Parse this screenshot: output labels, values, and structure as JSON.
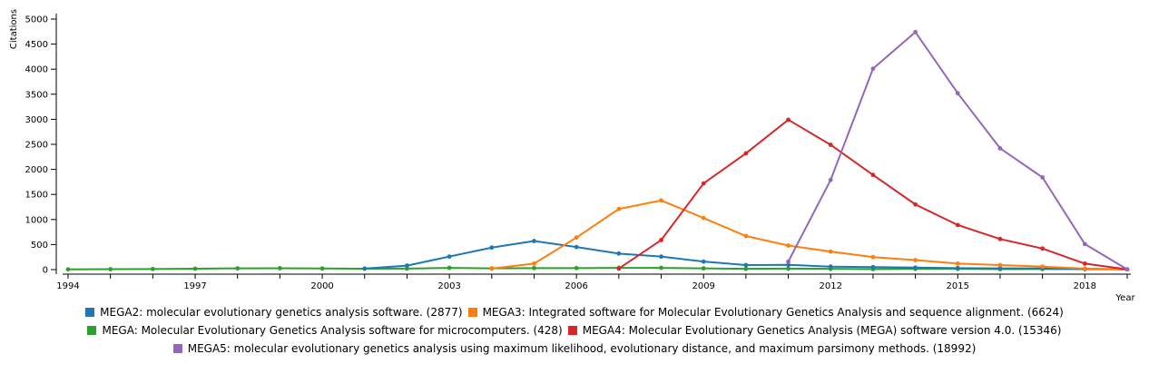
{
  "chart_data": {
    "type": "line",
    "title": "",
    "xlabel": "Year",
    "ylabel": "Citations",
    "xlim": [
      1994,
      2019
    ],
    "ylim": [
      0,
      5000
    ],
    "x_ticks": [
      "1994",
      "1997",
      "2000",
      "2003",
      "2006",
      "2009",
      "2012",
      "2015",
      "2018"
    ],
    "y_ticks": [
      "0",
      "500",
      "1000",
      "1500",
      "2000",
      "2500",
      "3000",
      "3500",
      "4000",
      "4500",
      "5000"
    ],
    "series": [
      {
        "name": "MEGA: Molecular Evolutionary Genetics Analysis software for microcomputers. (428)",
        "color": "#2ca02c",
        "x": [
          1994,
          1995,
          1996,
          1997,
          1998,
          1999,
          2000,
          2001,
          2002,
          2003,
          2004,
          2005,
          2006,
          2007,
          2008,
          2009,
          2010,
          2011,
          2012,
          2013,
          2014,
          2015,
          2016,
          2017,
          2018,
          2019
        ],
        "y": [
          5,
          8,
          12,
          18,
          25,
          28,
          22,
          18,
          20,
          35,
          25,
          30,
          30,
          35,
          35,
          25,
          15,
          20,
          15,
          10,
          15,
          15,
          10,
          12,
          8,
          5
        ]
      },
      {
        "name": "MEGA2: molecular evolutionary genetics analysis software. (2877)",
        "color": "#1f77b4",
        "x": [
          2001,
          2002,
          2003,
          2004,
          2005,
          2006,
          2007,
          2008,
          2009,
          2010,
          2011,
          2012,
          2013,
          2014,
          2015,
          2016,
          2017,
          2018,
          2019
        ],
        "y": [
          20,
          80,
          260,
          440,
          570,
          450,
          320,
          260,
          160,
          90,
          95,
          60,
          50,
          40,
          30,
          25,
          25,
          15,
          5
        ]
      },
      {
        "name": "MEGA3: Integrated software for Molecular Evolutionary Genetics Analysis and sequence alignment. (6624)",
        "color": "#ff7f0e",
        "x": [
          2004,
          2005,
          2006,
          2007,
          2008,
          2009,
          2010,
          2011,
          2012,
          2013,
          2014,
          2015,
          2016,
          2017,
          2018,
          2019
        ],
        "y": [
          20,
          120,
          640,
          1210,
          1380,
          1030,
          670,
          480,
          360,
          250,
          190,
          120,
          90,
          60,
          20,
          5
        ]
      },
      {
        "name": "MEGA4: Molecular Evolutionary Genetics Analysis (MEGA) software version 4.0. (15346)",
        "color": "#d62728",
        "x": [
          2007,
          2008,
          2009,
          2010,
          2011,
          2012,
          2013,
          2014,
          2015,
          2016,
          2017,
          2018,
          2019
        ],
        "y": [
          20,
          590,
          1720,
          2320,
          2990,
          2490,
          1890,
          1300,
          890,
          610,
          420,
          120,
          5
        ]
      },
      {
        "name": "MEGA5: molecular evolutionary genetics analysis using maximum likelihood, evolutionary distance, and maximum parsimony methods. (18992)",
        "color": "#9467bd",
        "x": [
          2011,
          2012,
          2013,
          2014,
          2015,
          2016,
          2017,
          2018,
          2019
        ],
        "y": [
          160,
          1790,
          4010,
          4740,
          3520,
          2420,
          1840,
          510,
          5
        ]
      }
    ],
    "legend_rows": [
      [
        1,
        2
      ],
      [
        0,
        3
      ],
      [
        4
      ]
    ]
  }
}
